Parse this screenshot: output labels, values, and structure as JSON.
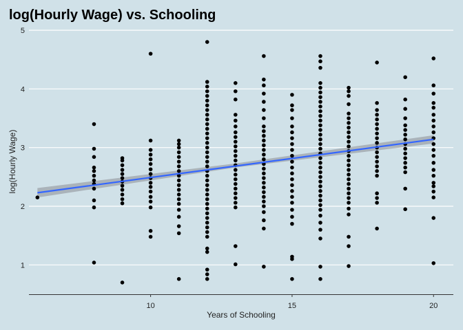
{
  "chart_data": {
    "type": "scatter",
    "title": "log(Hourly Wage) vs. Schooling",
    "xlabel": "Years of Schooling",
    "ylabel": "log(Hourly Wage)",
    "xlim": [
      5.7,
      20.7
    ],
    "ylim": [
      0.5,
      5.0
    ],
    "x_ticks": [
      10,
      15,
      20
    ],
    "y_ticks": [
      1,
      2,
      3,
      4,
      5
    ],
    "grid": "horizontal",
    "colors": {
      "background": "#d0e1e8",
      "points": "#000000",
      "fit_line": "#3366ff",
      "confidence_band": "#9aa0a6",
      "grid": "#ffffff"
    },
    "fit_line": {
      "x": [
        6,
        20
      ],
      "y": [
        2.23,
        3.14
      ]
    },
    "confidence_band": {
      "x": [
        6,
        13,
        20
      ],
      "lower": [
        2.15,
        2.66,
        3.07
      ],
      "upper": [
        2.31,
        2.73,
        3.21
      ]
    },
    "points": [
      {
        "x": 6,
        "y": 2.15
      },
      {
        "x": 8,
        "y": 1.04
      },
      {
        "x": 8,
        "y": 1.98
      },
      {
        "x": 8,
        "y": 2.1
      },
      {
        "x": 8,
        "y": 2.3
      },
      {
        "x": 8,
        "y": 2.38
      },
      {
        "x": 8,
        "y": 2.44
      },
      {
        "x": 8,
        "y": 2.52
      },
      {
        "x": 8,
        "y": 2.6
      },
      {
        "x": 8,
        "y": 2.66
      },
      {
        "x": 8,
        "y": 2.84
      },
      {
        "x": 8,
        "y": 2.98
      },
      {
        "x": 8,
        "y": 3.4
      },
      {
        "x": 9,
        "y": 0.7
      },
      {
        "x": 9,
        "y": 2.05
      },
      {
        "x": 9,
        "y": 2.12
      },
      {
        "x": 9,
        "y": 2.2
      },
      {
        "x": 9,
        "y": 2.28
      },
      {
        "x": 9,
        "y": 2.35
      },
      {
        "x": 9,
        "y": 2.42
      },
      {
        "x": 9,
        "y": 2.48
      },
      {
        "x": 9,
        "y": 2.55
      },
      {
        "x": 9,
        "y": 2.62
      },
      {
        "x": 9,
        "y": 2.7
      },
      {
        "x": 9,
        "y": 2.78
      },
      {
        "x": 9,
        "y": 2.82
      },
      {
        "x": 10,
        "y": 1.48
      },
      {
        "x": 10,
        "y": 1.58
      },
      {
        "x": 10,
        "y": 1.98
      },
      {
        "x": 10,
        "y": 2.08
      },
      {
        "x": 10,
        "y": 2.16
      },
      {
        "x": 10,
        "y": 2.25
      },
      {
        "x": 10,
        "y": 2.33
      },
      {
        "x": 10,
        "y": 2.4
      },
      {
        "x": 10,
        "y": 2.48
      },
      {
        "x": 10,
        "y": 2.55
      },
      {
        "x": 10,
        "y": 2.63
      },
      {
        "x": 10,
        "y": 2.72
      },
      {
        "x": 10,
        "y": 2.8
      },
      {
        "x": 10,
        "y": 2.88
      },
      {
        "x": 10,
        "y": 2.96
      },
      {
        "x": 10,
        "y": 3.12
      },
      {
        "x": 10,
        "y": 4.6
      },
      {
        "x": 11,
        "y": 0.76
      },
      {
        "x": 11,
        "y": 1.54
      },
      {
        "x": 11,
        "y": 1.66
      },
      {
        "x": 11,
        "y": 1.82
      },
      {
        "x": 11,
        "y": 1.94
      },
      {
        "x": 11,
        "y": 2.04
      },
      {
        "x": 11,
        "y": 2.12
      },
      {
        "x": 11,
        "y": 2.2
      },
      {
        "x": 11,
        "y": 2.28
      },
      {
        "x": 11,
        "y": 2.36
      },
      {
        "x": 11,
        "y": 2.44
      },
      {
        "x": 11,
        "y": 2.52
      },
      {
        "x": 11,
        "y": 2.6
      },
      {
        "x": 11,
        "y": 2.68
      },
      {
        "x": 11,
        "y": 2.76
      },
      {
        "x": 11,
        "y": 2.84
      },
      {
        "x": 11,
        "y": 2.92
      },
      {
        "x": 11,
        "y": 3.0
      },
      {
        "x": 11,
        "y": 3.06
      },
      {
        "x": 11,
        "y": 3.12
      },
      {
        "x": 12,
        "y": 0.76
      },
      {
        "x": 12,
        "y": 0.84
      },
      {
        "x": 12,
        "y": 0.92
      },
      {
        "x": 12,
        "y": 1.22
      },
      {
        "x": 12,
        "y": 1.28
      },
      {
        "x": 12,
        "y": 1.48
      },
      {
        "x": 12,
        "y": 1.56
      },
      {
        "x": 12,
        "y": 1.64
      },
      {
        "x": 12,
        "y": 1.72
      },
      {
        "x": 12,
        "y": 1.8
      },
      {
        "x": 12,
        "y": 1.88
      },
      {
        "x": 12,
        "y": 1.96
      },
      {
        "x": 12,
        "y": 2.04
      },
      {
        "x": 12,
        "y": 2.12
      },
      {
        "x": 12,
        "y": 2.2
      },
      {
        "x": 12,
        "y": 2.28
      },
      {
        "x": 12,
        "y": 2.36
      },
      {
        "x": 12,
        "y": 2.44
      },
      {
        "x": 12,
        "y": 2.52
      },
      {
        "x": 12,
        "y": 2.6
      },
      {
        "x": 12,
        "y": 2.68
      },
      {
        "x": 12,
        "y": 2.76
      },
      {
        "x": 12,
        "y": 2.84
      },
      {
        "x": 12,
        "y": 2.92
      },
      {
        "x": 12,
        "y": 3.0
      },
      {
        "x": 12,
        "y": 3.08
      },
      {
        "x": 12,
        "y": 3.16
      },
      {
        "x": 12,
        "y": 3.24
      },
      {
        "x": 12,
        "y": 3.32
      },
      {
        "x": 12,
        "y": 3.4
      },
      {
        "x": 12,
        "y": 3.48
      },
      {
        "x": 12,
        "y": 3.56
      },
      {
        "x": 12,
        "y": 3.64
      },
      {
        "x": 12,
        "y": 3.72
      },
      {
        "x": 12,
        "y": 3.8
      },
      {
        "x": 12,
        "y": 3.88
      },
      {
        "x": 12,
        "y": 3.96
      },
      {
        "x": 12,
        "y": 4.04
      },
      {
        "x": 12,
        "y": 4.12
      },
      {
        "x": 12,
        "y": 4.8
      },
      {
        "x": 13,
        "y": 1.01
      },
      {
        "x": 13,
        "y": 1.32
      },
      {
        "x": 13,
        "y": 1.98
      },
      {
        "x": 13,
        "y": 2.06
      },
      {
        "x": 13,
        "y": 2.14
      },
      {
        "x": 13,
        "y": 2.22
      },
      {
        "x": 13,
        "y": 2.3
      },
      {
        "x": 13,
        "y": 2.38
      },
      {
        "x": 13,
        "y": 2.46
      },
      {
        "x": 13,
        "y": 2.54
      },
      {
        "x": 13,
        "y": 2.62
      },
      {
        "x": 13,
        "y": 2.7
      },
      {
        "x": 13,
        "y": 2.78
      },
      {
        "x": 13,
        "y": 2.86
      },
      {
        "x": 13,
        "y": 2.94
      },
      {
        "x": 13,
        "y": 3.02
      },
      {
        "x": 13,
        "y": 3.1
      },
      {
        "x": 13,
        "y": 3.18
      },
      {
        "x": 13,
        "y": 3.26
      },
      {
        "x": 13,
        "y": 3.36
      },
      {
        "x": 13,
        "y": 3.46
      },
      {
        "x": 13,
        "y": 3.56
      },
      {
        "x": 13,
        "y": 3.82
      },
      {
        "x": 13,
        "y": 3.96
      },
      {
        "x": 13,
        "y": 4.1
      },
      {
        "x": 14,
        "y": 0.97
      },
      {
        "x": 14,
        "y": 1.62
      },
      {
        "x": 14,
        "y": 1.76
      },
      {
        "x": 14,
        "y": 1.9
      },
      {
        "x": 14,
        "y": 2.0
      },
      {
        "x": 14,
        "y": 2.08
      },
      {
        "x": 14,
        "y": 2.16
      },
      {
        "x": 14,
        "y": 2.24
      },
      {
        "x": 14,
        "y": 2.32
      },
      {
        "x": 14,
        "y": 2.4
      },
      {
        "x": 14,
        "y": 2.48
      },
      {
        "x": 14,
        "y": 2.56
      },
      {
        "x": 14,
        "y": 2.64
      },
      {
        "x": 14,
        "y": 2.72
      },
      {
        "x": 14,
        "y": 2.8
      },
      {
        "x": 14,
        "y": 2.88
      },
      {
        "x": 14,
        "y": 2.96
      },
      {
        "x": 14,
        "y": 3.04
      },
      {
        "x": 14,
        "y": 3.12
      },
      {
        "x": 14,
        "y": 3.2
      },
      {
        "x": 14,
        "y": 3.28
      },
      {
        "x": 14,
        "y": 3.36
      },
      {
        "x": 14,
        "y": 3.5
      },
      {
        "x": 14,
        "y": 3.64
      },
      {
        "x": 14,
        "y": 3.78
      },
      {
        "x": 14,
        "y": 3.92
      },
      {
        "x": 14,
        "y": 4.06
      },
      {
        "x": 14,
        "y": 4.16
      },
      {
        "x": 14,
        "y": 4.56
      },
      {
        "x": 15,
        "y": 0.76
      },
      {
        "x": 15,
        "y": 1.1
      },
      {
        "x": 15,
        "y": 1.14
      },
      {
        "x": 15,
        "y": 1.7
      },
      {
        "x": 15,
        "y": 1.82
      },
      {
        "x": 15,
        "y": 1.94
      },
      {
        "x": 15,
        "y": 2.06
      },
      {
        "x": 15,
        "y": 2.16
      },
      {
        "x": 15,
        "y": 2.26
      },
      {
        "x": 15,
        "y": 2.36
      },
      {
        "x": 15,
        "y": 2.46
      },
      {
        "x": 15,
        "y": 2.56
      },
      {
        "x": 15,
        "y": 2.66
      },
      {
        "x": 15,
        "y": 2.76
      },
      {
        "x": 15,
        "y": 2.86
      },
      {
        "x": 15,
        "y": 2.96
      },
      {
        "x": 15,
        "y": 3.06
      },
      {
        "x": 15,
        "y": 3.16
      },
      {
        "x": 15,
        "y": 3.26
      },
      {
        "x": 15,
        "y": 3.36
      },
      {
        "x": 15,
        "y": 3.5
      },
      {
        "x": 15,
        "y": 3.64
      },
      {
        "x": 15,
        "y": 3.72
      },
      {
        "x": 15,
        "y": 3.9
      },
      {
        "x": 16,
        "y": 0.76
      },
      {
        "x": 16,
        "y": 0.97
      },
      {
        "x": 16,
        "y": 1.45
      },
      {
        "x": 16,
        "y": 1.6
      },
      {
        "x": 16,
        "y": 1.72
      },
      {
        "x": 16,
        "y": 1.84
      },
      {
        "x": 16,
        "y": 1.94
      },
      {
        "x": 16,
        "y": 2.02
      },
      {
        "x": 16,
        "y": 2.1
      },
      {
        "x": 16,
        "y": 2.18
      },
      {
        "x": 16,
        "y": 2.26
      },
      {
        "x": 16,
        "y": 2.34
      },
      {
        "x": 16,
        "y": 2.42
      },
      {
        "x": 16,
        "y": 2.5
      },
      {
        "x": 16,
        "y": 2.58
      },
      {
        "x": 16,
        "y": 2.66
      },
      {
        "x": 16,
        "y": 2.74
      },
      {
        "x": 16,
        "y": 2.82
      },
      {
        "x": 16,
        "y": 2.9
      },
      {
        "x": 16,
        "y": 2.98
      },
      {
        "x": 16,
        "y": 3.06
      },
      {
        "x": 16,
        "y": 3.14
      },
      {
        "x": 16,
        "y": 3.22
      },
      {
        "x": 16,
        "y": 3.3
      },
      {
        "x": 16,
        "y": 3.38
      },
      {
        "x": 16,
        "y": 3.46
      },
      {
        "x": 16,
        "y": 3.54
      },
      {
        "x": 16,
        "y": 3.62
      },
      {
        "x": 16,
        "y": 3.7
      },
      {
        "x": 16,
        "y": 3.78
      },
      {
        "x": 16,
        "y": 3.86
      },
      {
        "x": 16,
        "y": 3.94
      },
      {
        "x": 16,
        "y": 4.02
      },
      {
        "x": 16,
        "y": 4.1
      },
      {
        "x": 16,
        "y": 4.36
      },
      {
        "x": 16,
        "y": 4.47
      },
      {
        "x": 16,
        "y": 4.56
      },
      {
        "x": 17,
        "y": 0.98
      },
      {
        "x": 17,
        "y": 1.32
      },
      {
        "x": 17,
        "y": 1.48
      },
      {
        "x": 17,
        "y": 1.86
      },
      {
        "x": 17,
        "y": 1.96
      },
      {
        "x": 17,
        "y": 2.06
      },
      {
        "x": 17,
        "y": 2.14
      },
      {
        "x": 17,
        "y": 2.22
      },
      {
        "x": 17,
        "y": 2.3
      },
      {
        "x": 17,
        "y": 2.38
      },
      {
        "x": 17,
        "y": 2.46
      },
      {
        "x": 17,
        "y": 2.54
      },
      {
        "x": 17,
        "y": 2.62
      },
      {
        "x": 17,
        "y": 2.7
      },
      {
        "x": 17,
        "y": 2.78
      },
      {
        "x": 17,
        "y": 2.86
      },
      {
        "x": 17,
        "y": 2.94
      },
      {
        "x": 17,
        "y": 3.02
      },
      {
        "x": 17,
        "y": 3.1
      },
      {
        "x": 17,
        "y": 3.18
      },
      {
        "x": 17,
        "y": 3.26
      },
      {
        "x": 17,
        "y": 3.34
      },
      {
        "x": 17,
        "y": 3.42
      },
      {
        "x": 17,
        "y": 3.5
      },
      {
        "x": 17,
        "y": 3.58
      },
      {
        "x": 17,
        "y": 3.74
      },
      {
        "x": 17,
        "y": 3.88
      },
      {
        "x": 17,
        "y": 3.96
      },
      {
        "x": 17,
        "y": 4.02
      },
      {
        "x": 18,
        "y": 1.62
      },
      {
        "x": 18,
        "y": 2.06
      },
      {
        "x": 18,
        "y": 2.14
      },
      {
        "x": 18,
        "y": 2.22
      },
      {
        "x": 18,
        "y": 2.52
      },
      {
        "x": 18,
        "y": 2.6
      },
      {
        "x": 18,
        "y": 2.68
      },
      {
        "x": 18,
        "y": 2.76
      },
      {
        "x": 18,
        "y": 2.84
      },
      {
        "x": 18,
        "y": 2.92
      },
      {
        "x": 18,
        "y": 3.0
      },
      {
        "x": 18,
        "y": 3.08
      },
      {
        "x": 18,
        "y": 3.16
      },
      {
        "x": 18,
        "y": 3.24
      },
      {
        "x": 18,
        "y": 3.32
      },
      {
        "x": 18,
        "y": 3.4
      },
      {
        "x": 18,
        "y": 3.48
      },
      {
        "x": 18,
        "y": 3.56
      },
      {
        "x": 18,
        "y": 3.64
      },
      {
        "x": 18,
        "y": 3.76
      },
      {
        "x": 18,
        "y": 4.45
      },
      {
        "x": 19,
        "y": 1.95
      },
      {
        "x": 19,
        "y": 2.3
      },
      {
        "x": 19,
        "y": 2.58
      },
      {
        "x": 19,
        "y": 2.66
      },
      {
        "x": 19,
        "y": 2.74
      },
      {
        "x": 19,
        "y": 2.82
      },
      {
        "x": 19,
        "y": 2.9
      },
      {
        "x": 19,
        "y": 2.98
      },
      {
        "x": 19,
        "y": 3.06
      },
      {
        "x": 19,
        "y": 3.14
      },
      {
        "x": 19,
        "y": 3.22
      },
      {
        "x": 19,
        "y": 3.3
      },
      {
        "x": 19,
        "y": 3.38
      },
      {
        "x": 19,
        "y": 3.5
      },
      {
        "x": 19,
        "y": 3.66
      },
      {
        "x": 19,
        "y": 3.82
      },
      {
        "x": 19,
        "y": 4.2
      },
      {
        "x": 20,
        "y": 1.03
      },
      {
        "x": 20,
        "y": 1.8
      },
      {
        "x": 20,
        "y": 2.15
      },
      {
        "x": 20,
        "y": 2.25
      },
      {
        "x": 20,
        "y": 2.34
      },
      {
        "x": 20,
        "y": 2.4
      },
      {
        "x": 20,
        "y": 2.52
      },
      {
        "x": 20,
        "y": 2.62
      },
      {
        "x": 20,
        "y": 2.74
      },
      {
        "x": 20,
        "y": 2.86
      },
      {
        "x": 20,
        "y": 2.96
      },
      {
        "x": 20,
        "y": 3.06
      },
      {
        "x": 20,
        "y": 3.16
      },
      {
        "x": 20,
        "y": 3.26
      },
      {
        "x": 20,
        "y": 3.36
      },
      {
        "x": 20,
        "y": 3.46
      },
      {
        "x": 20,
        "y": 3.56
      },
      {
        "x": 20,
        "y": 3.68
      },
      {
        "x": 20,
        "y": 3.76
      },
      {
        "x": 20,
        "y": 3.92
      },
      {
        "x": 20,
        "y": 4.06
      },
      {
        "x": 20,
        "y": 4.52
      }
    ]
  }
}
